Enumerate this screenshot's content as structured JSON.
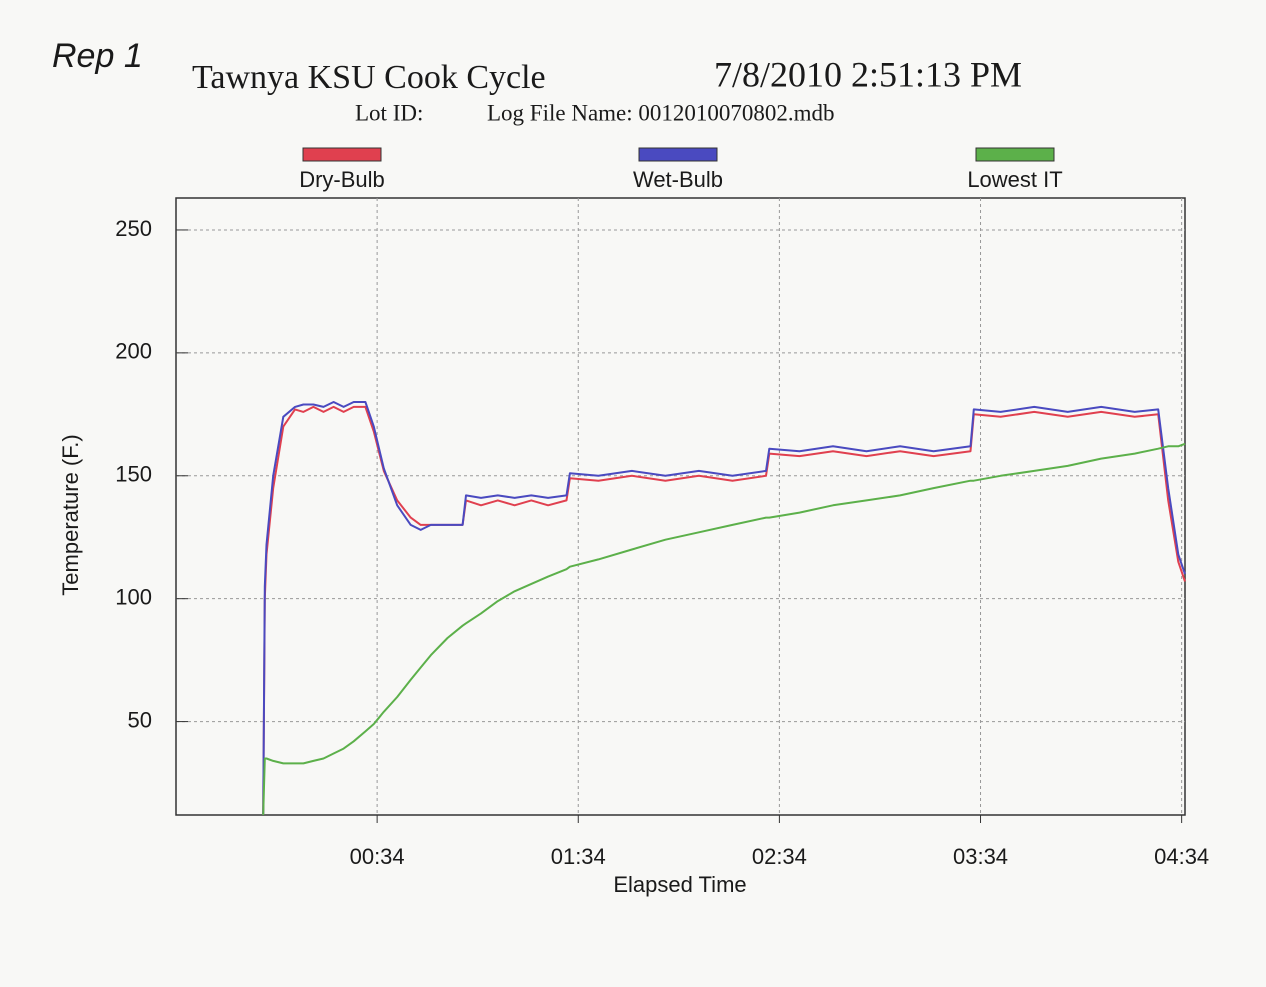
{
  "chart_data": {
    "type": "line",
    "annotation": "Rep 1",
    "title": "Tawnya KSU Cook Cycle",
    "date": "7/8/2010 2:51:13 PM",
    "subtitle_left": "Lot ID:",
    "subtitle_right": "Log File Name: 0012010070802.mdb",
    "x_label": "Elapsed Time",
    "y_label": "Temperature (F.)",
    "xlim": [
      -26,
      275
    ],
    "ylim": [
      12,
      263
    ],
    "xticks": [
      {
        "value": 34,
        "label": "00:34"
      },
      {
        "value": 94,
        "label": "01:34"
      },
      {
        "value": 154,
        "label": "02:34"
      },
      {
        "value": 214,
        "label": "03:34"
      },
      {
        "value": 274,
        "label": "04:34"
      }
    ],
    "yticks": [
      50,
      100,
      150,
      200,
      250
    ],
    "grid": true,
    "x": [
      0,
      0.5,
      1,
      3,
      6,
      9.5,
      12,
      15,
      18,
      21,
      24,
      27,
      30.5,
      33,
      36,
      40,
      44,
      47,
      50,
      55,
      59.5,
      60.5,
      65,
      70,
      75,
      80,
      85,
      90.5,
      91.5,
      100,
      110,
      120,
      130,
      140,
      150,
      151,
      160,
      170,
      180,
      190,
      200,
      211,
      212,
      220,
      230,
      240,
      250,
      260,
      267,
      270,
      273,
      275
    ],
    "series": [
      {
        "name": "Dry-Bulb",
        "color": "#e0404f",
        "values": [
          12,
          100,
          118,
          145,
          170,
          177,
          176,
          178,
          176,
          178,
          176,
          178,
          178,
          168,
          152,
          140,
          133,
          130,
          130,
          130,
          130,
          140,
          138,
          140,
          138,
          140,
          138,
          140,
          149,
          148,
          150,
          148,
          150,
          148,
          150,
          159,
          158,
          160,
          158,
          160,
          158,
          160,
          175,
          174,
          176,
          174,
          176,
          174,
          175,
          140,
          115,
          107
        ]
      },
      {
        "name": "Wet-Bulb",
        "color": "#4a4ac0",
        "values": [
          12,
          105,
          122,
          150,
          174,
          178,
          179,
          179,
          178,
          180,
          178,
          180,
          180,
          170,
          153,
          138,
          130,
          128,
          130,
          130,
          130,
          142,
          141,
          142,
          141,
          142,
          141,
          142,
          151,
          150,
          152,
          150,
          152,
          150,
          152,
          161,
          160,
          162,
          160,
          162,
          160,
          162,
          177,
          176,
          178,
          176,
          178,
          176,
          177,
          145,
          118,
          110
        ]
      },
      {
        "name": "Lowest IT",
        "color": "#5cb04a",
        "values": [
          12,
          35,
          35,
          34,
          33,
          33,
          33,
          34,
          35,
          37,
          39,
          42,
          46,
          49,
          54,
          60,
          67,
          72,
          77,
          84,
          89,
          90,
          94,
          99,
          103,
          106,
          109,
          112,
          113,
          116,
          120,
          124,
          127,
          130,
          133,
          133,
          135,
          138,
          140,
          142,
          145,
          148,
          148,
          150,
          152,
          154,
          157,
          159,
          161,
          162,
          162,
          163
        ]
      }
    ]
  }
}
